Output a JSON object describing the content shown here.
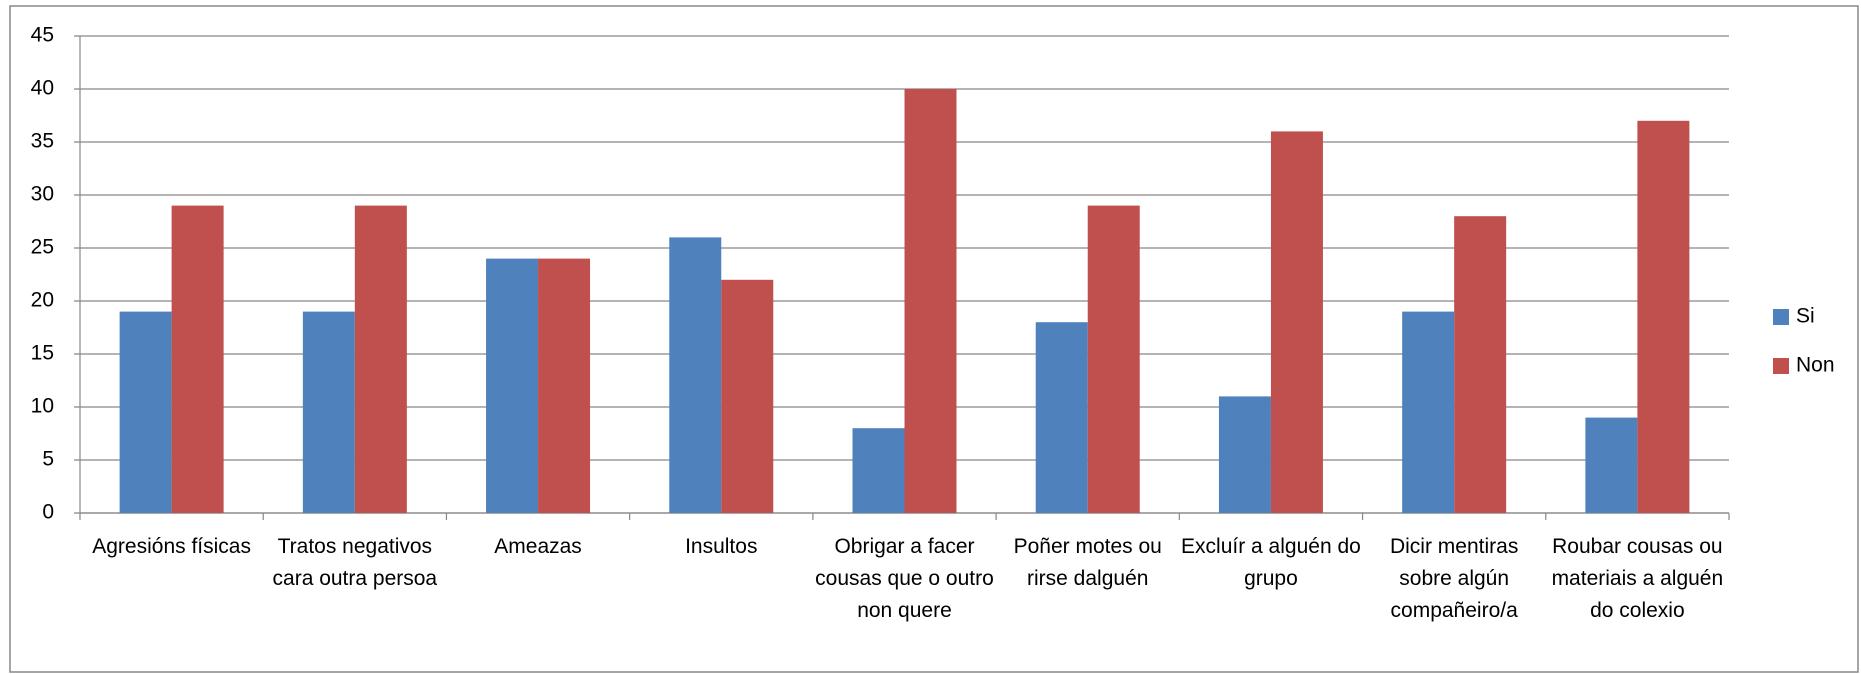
{
  "chart_data": {
    "type": "bar",
    "categories": [
      "Agresións físicas",
      "Tratos negativos cara outra persoa",
      "Ameazas",
      "Insultos",
      "Obrigar a facer cousas que o outro non quere",
      "Poñer motes ou rirse dalguén",
      "Excluír a alguén do grupo",
      "Dicir mentiras sobre algún compañeiro/a",
      "Roubar cousas ou materiais a alguén do colexio"
    ],
    "series": [
      {
        "name": "Si",
        "color": "#4f81bd",
        "values": [
          19,
          19,
          24,
          26,
          8,
          18,
          11,
          19,
          9
        ]
      },
      {
        "name": "Non",
        "color": "#c0504d",
        "values": [
          29,
          29,
          24,
          22,
          40,
          29,
          36,
          28,
          37
        ]
      }
    ],
    "ylim": [
      0,
      45
    ],
    "yticks": [
      0,
      5,
      10,
      15,
      20,
      25,
      30,
      35,
      40,
      45
    ],
    "grid": true,
    "legend": "right"
  }
}
